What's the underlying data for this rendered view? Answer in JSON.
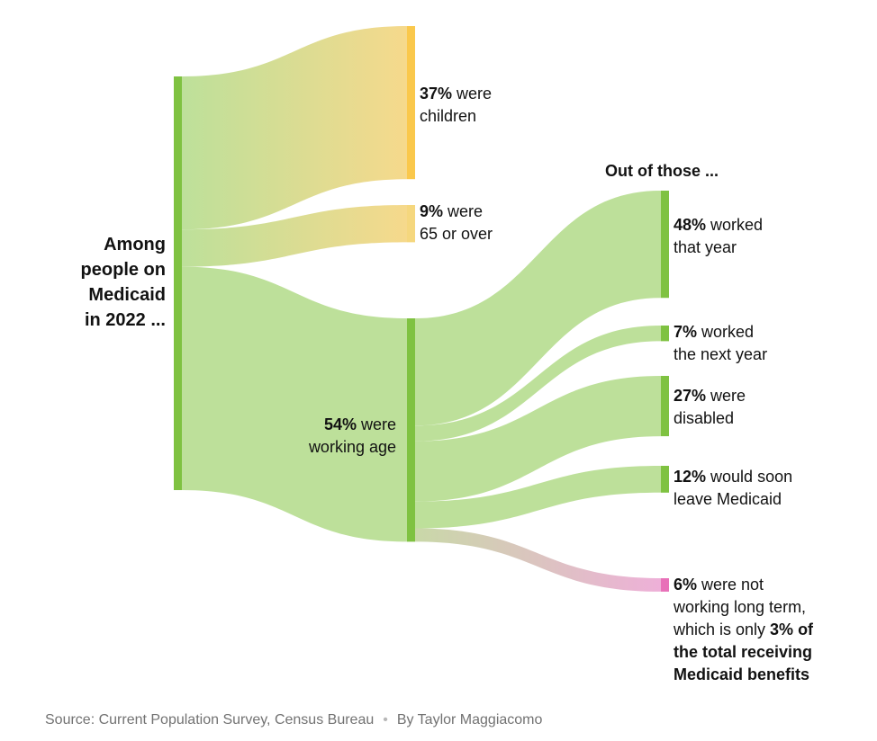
{
  "chart_data": {
    "type": "sankey",
    "root": {
      "label": "Among people on Medicaid in 2022 ...",
      "label_lines": [
        "Among",
        "people on",
        "Medicaid",
        "in 2022 ..."
      ]
    },
    "level1": [
      {
        "key": "children",
        "value": 37,
        "bold": "37%",
        "line1_rest": " were",
        "line2": "children",
        "color": "#fac84c"
      },
      {
        "key": "seniors",
        "value": 9,
        "bold": "9%",
        "line1_rest": " were",
        "line2": "65 or over",
        "color": "#f5d77e"
      },
      {
        "key": "working_age",
        "value": 54,
        "bold": "54%",
        "line1_rest": " were",
        "line2": "working age",
        "color": "#7fc241"
      }
    ],
    "level2_header": "Out of those ...",
    "level2": [
      {
        "key": "worked",
        "value": 48,
        "bold": "48%",
        "line1_rest": " worked",
        "line2": "that year",
        "color": "#7fc241"
      },
      {
        "key": "worked_next",
        "value": 7,
        "bold": "7%",
        "line1_rest": " worked",
        "line2": "the next year",
        "color": "#7fc241"
      },
      {
        "key": "disabled",
        "value": 27,
        "bold": "27%",
        "line1_rest": " were",
        "line2": "disabled",
        "color": "#7fc241"
      },
      {
        "key": "leave",
        "value": 12,
        "bold": "12%",
        "line1_rest": " would soon",
        "line2": "leave Medicaid",
        "color": "#7fc241"
      },
      {
        "key": "not_working",
        "value": 6,
        "bold": "6%",
        "line1_rest": " were not",
        "line2": "working long term,",
        "line3_pre": "which is only ",
        "line3_bold": "3% of",
        "line4_bold": "the total receiving",
        "line5_bold": "Medicaid benefits",
        "color": "#e870b8"
      }
    ],
    "colors": {
      "node_green": "#7fc241",
      "flow_green": "#bde09a",
      "flow_yellow": "#f3dc90",
      "node_yellow": "#fac84c",
      "node_yellow_light": "#f5d77e",
      "node_pink": "#e870b8",
      "flow_pink": "#eeb0d8"
    }
  },
  "footer": {
    "source": "Source: Current Population Survey, Census Bureau",
    "separator": "•",
    "byline": "By Taylor Maggiacomo"
  }
}
